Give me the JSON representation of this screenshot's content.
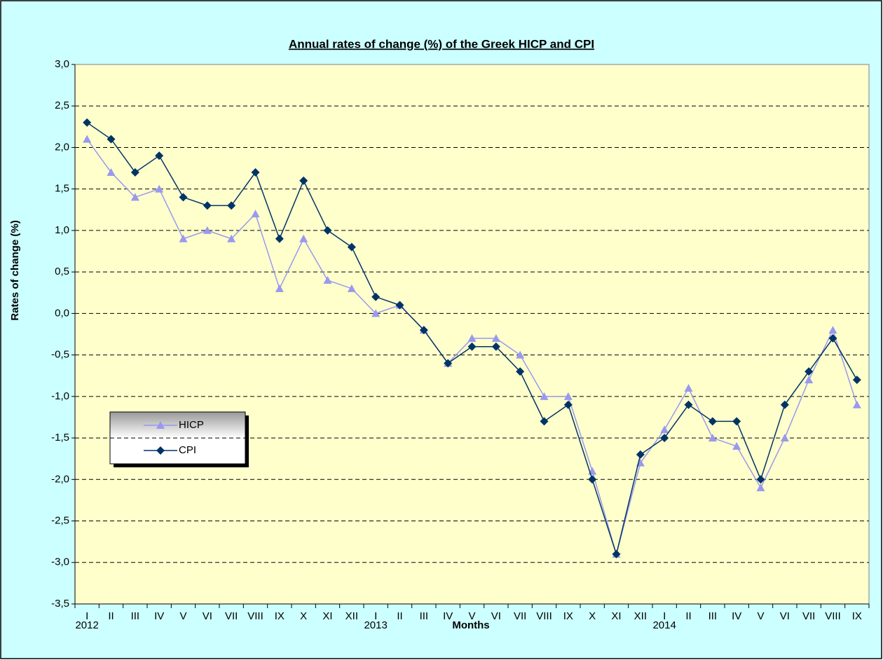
{
  "chart_data": {
    "type": "line",
    "title": "Annual rates of change (%) of the Greek HICP and CPI",
    "y_label": "Rates of change (%)",
    "x_label": "Months",
    "categories": [
      "I",
      "II",
      "III",
      "IV",
      "V",
      "VI",
      "VII",
      "VIII",
      "IX",
      "X",
      "XI",
      "XII",
      "I",
      "II",
      "III",
      "IV",
      "V",
      "VI",
      "VII",
      "VIII",
      "IX",
      "X",
      "XI",
      "XII",
      "I",
      "II",
      "III",
      "IV",
      "V",
      "VI",
      "VII",
      "VIII",
      "IX"
    ],
    "years": [
      "2012",
      null,
      null,
      null,
      null,
      null,
      null,
      null,
      null,
      null,
      null,
      null,
      "2013",
      null,
      null,
      null,
      null,
      null,
      null,
      null,
      null,
      null,
      null,
      null,
      "2014",
      null,
      null,
      null,
      null,
      null,
      null,
      null,
      null
    ],
    "series": [
      {
        "name": "HICP",
        "color": "#9999ee",
        "marker": "triangle",
        "values": [
          2.1,
          1.7,
          1.4,
          1.5,
          0.9,
          1.0,
          0.9,
          1.2,
          0.3,
          0.9,
          0.4,
          0.3,
          0.0,
          0.1,
          -0.2,
          -0.6,
          -0.3,
          -0.3,
          -0.5,
          -1.0,
          -1.0,
          -1.9,
          -2.9,
          -1.8,
          -1.4,
          -0.9,
          -1.5,
          -1.6,
          -2.1,
          -1.5,
          -0.8,
          -0.2,
          -1.1
        ]
      },
      {
        "name": "CPI",
        "color": "#003366",
        "marker": "diamond",
        "values": [
          2.3,
          2.1,
          1.7,
          1.9,
          1.4,
          1.3,
          1.3,
          1.7,
          0.9,
          1.6,
          1.0,
          0.8,
          0.2,
          0.1,
          -0.2,
          -0.6,
          -0.4,
          -0.4,
          -0.7,
          -1.3,
          -1.1,
          -2.0,
          -2.9,
          -1.7,
          -1.5,
          -1.1,
          -1.3,
          -1.3,
          -2.0,
          -1.1,
          -0.7,
          -0.3,
          -0.8
        ]
      }
    ],
    "ylim": [
      -3.5,
      3.0
    ],
    "yticks": [
      {
        "value": -3.5,
        "label": "-3,5"
      },
      {
        "value": -3.0,
        "label": "-3,0"
      },
      {
        "value": -2.5,
        "label": "-2,5"
      },
      {
        "value": -2.0,
        "label": "-2,0"
      },
      {
        "value": -1.5,
        "label": "-1,5"
      },
      {
        "value": -1.0,
        "label": "-1,0"
      },
      {
        "value": -0.5,
        "label": "-0,5"
      },
      {
        "value": 0,
        "label": "0,0"
      },
      {
        "value": 0.5,
        "label": "0,5"
      },
      {
        "value": 1.0,
        "label": "1,0"
      },
      {
        "value": 1.5,
        "label": "1,5"
      },
      {
        "value": 2.0,
        "label": "2,0"
      },
      {
        "value": 2.5,
        "label": "2,5"
      },
      {
        "value": 3.0,
        "label": "3,0"
      }
    ],
    "grid": true,
    "legend": "left"
  }
}
